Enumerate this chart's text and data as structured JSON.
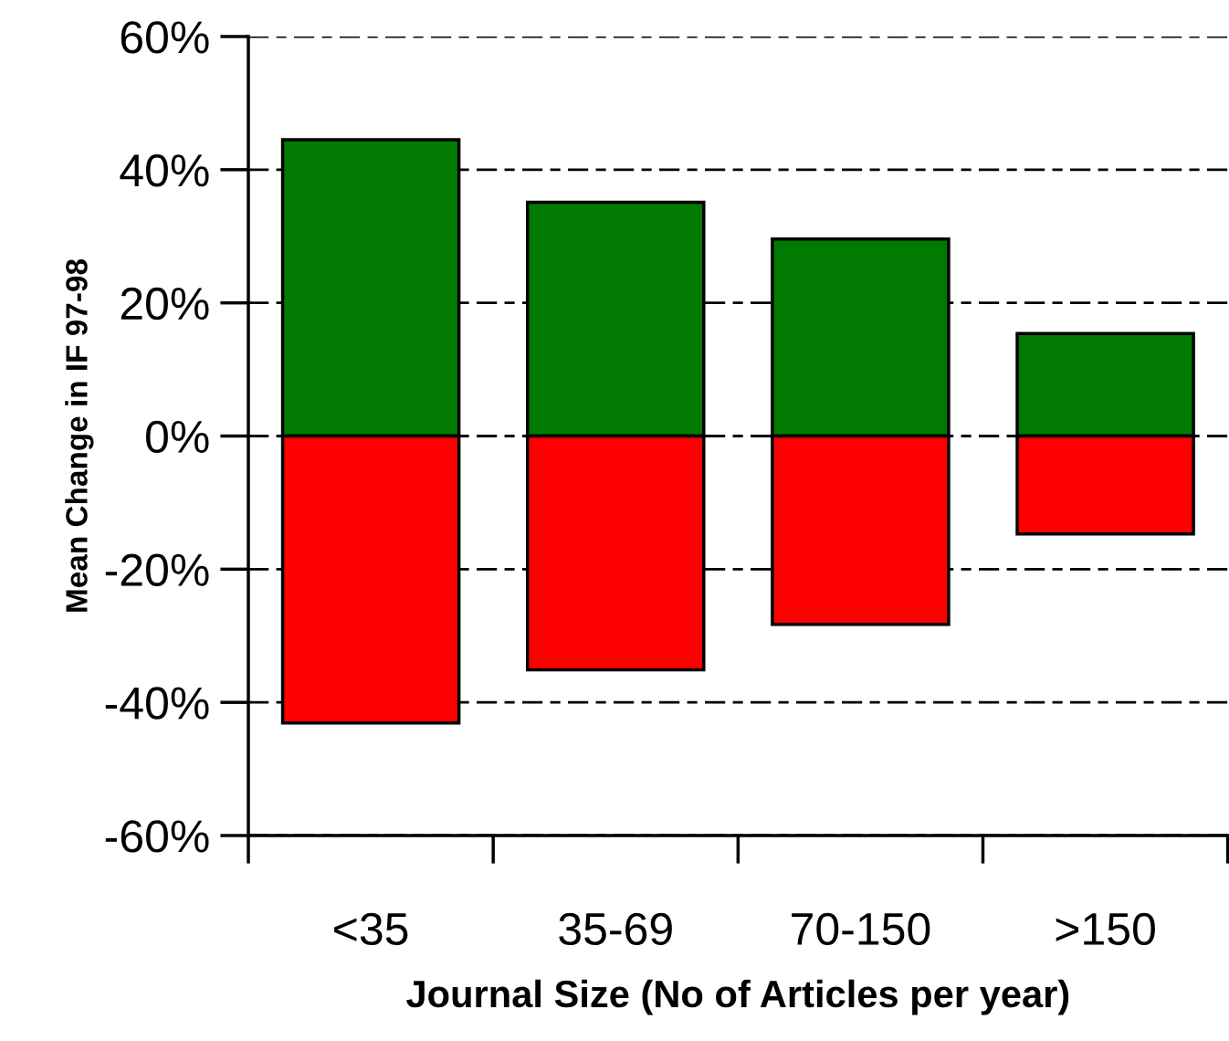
{
  "chart_data": {
    "type": "bar",
    "stacked": true,
    "xlabel": "Journal Size (No of Articles per year)",
    "ylabel": "Mean Change in IF 97-98",
    "categories": [
      "<35",
      "35-69",
      "70-150",
      ">150"
    ],
    "series": [
      {
        "color": "#007a00",
        "values": [
          44.5,
          35.1,
          29.6,
          15.4
        ]
      },
      {
        "color": "#ff0000",
        "values": [
          -43.1,
          -35.1,
          -28.3,
          -14.7
        ]
      }
    ],
    "ylim": [
      -60,
      60
    ],
    "yticks": [
      {
        "value": -60,
        "label": "-60%"
      },
      {
        "value": -40,
        "label": "-40%"
      },
      {
        "value": -20,
        "label": "-20%"
      },
      {
        "value": 0,
        "label": "0%"
      },
      {
        "value": 20,
        "label": "20%"
      },
      {
        "value": 40,
        "label": "40%"
      },
      {
        "value": 60,
        "label": "60%"
      }
    ],
    "grid": "y",
    "legend": false
  }
}
